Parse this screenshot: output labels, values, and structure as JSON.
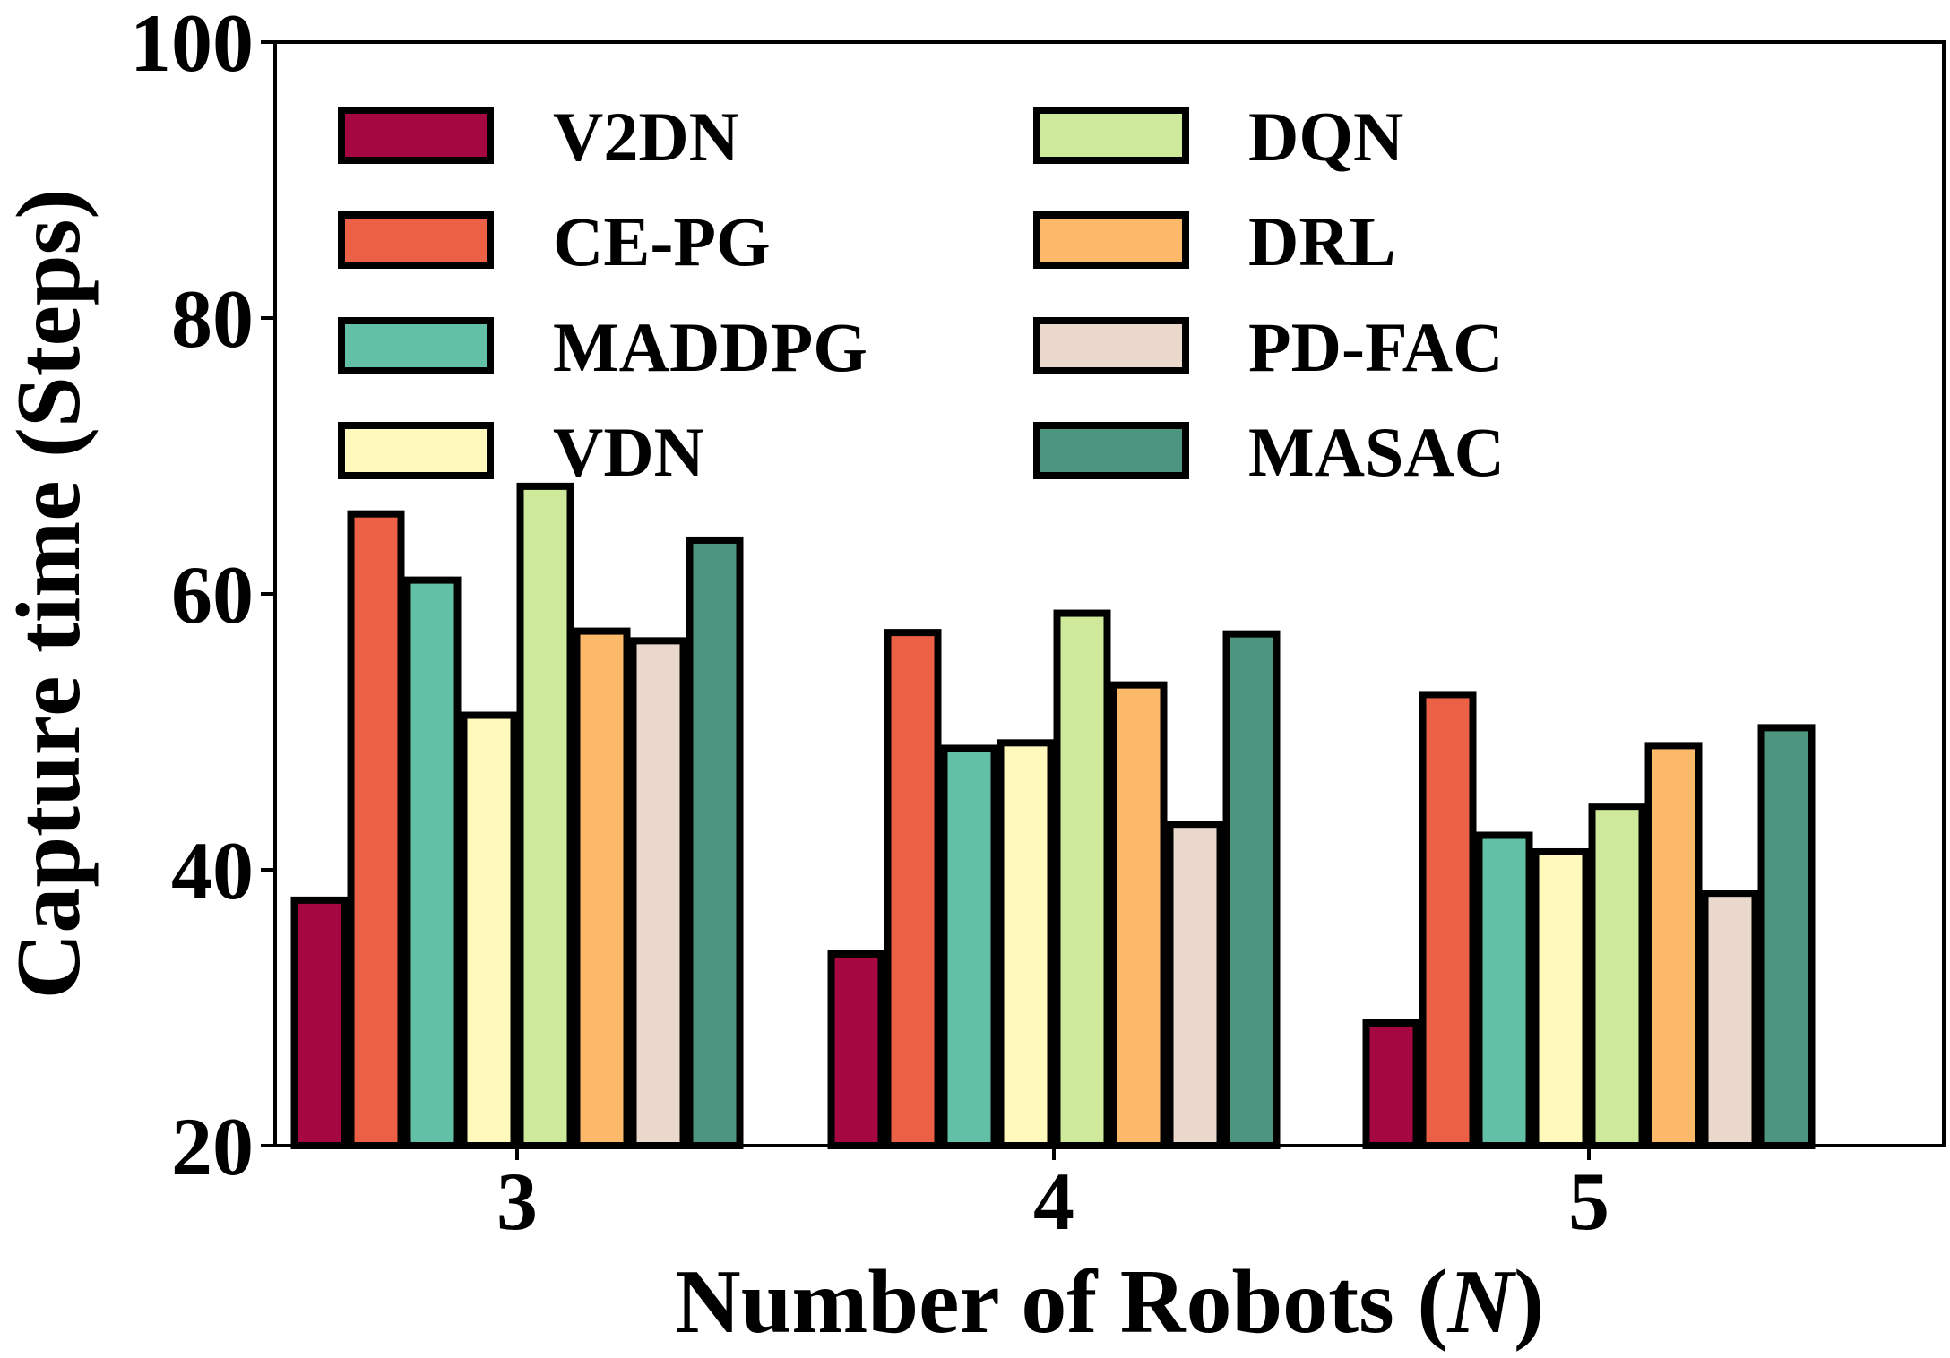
{
  "chart_data": {
    "type": "bar",
    "title": "",
    "xlabel": "Number of Robots (N)",
    "xlabel_parts": {
      "prefix": "Number of Robots (",
      "var": "N",
      "suffix": ")"
    },
    "ylabel": "Capture time (Steps)",
    "ylim": [
      20,
      100
    ],
    "yticks": [
      "20",
      "40",
      "60",
      "80",
      "100"
    ],
    "categories": [
      "3",
      "4",
      "5"
    ],
    "grid": false,
    "legend_position": "top-left",
    "legend_columns": 2,
    "series": [
      {
        "name": "V2DN",
        "color": "#a50841",
        "values": [
          37.8,
          33.9,
          28.9
        ]
      },
      {
        "name": "CE-PG",
        "color": "#ec6046",
        "values": [
          65.8,
          57.2,
          52.7
        ]
      },
      {
        "name": "MADDPG",
        "color": "#62c0a7",
        "values": [
          61.0,
          48.8,
          42.5
        ]
      },
      {
        "name": "VDN",
        "color": "#fffabb",
        "values": [
          51.2,
          49.2,
          41.3
        ]
      },
      {
        "name": "DQN",
        "color": "#cfe99a",
        "values": [
          67.8,
          58.6,
          44.6
        ]
      },
      {
        "name": "DRL",
        "color": "#fbb969",
        "values": [
          57.3,
          53.4,
          49.0
        ]
      },
      {
        "name": "PD-FAC",
        "color": "#ebd8cd",
        "values": [
          56.6,
          43.3,
          38.3
        ]
      },
      {
        "name": "MASAC",
        "color": "#4e9580",
        "values": [
          63.9,
          57.1,
          50.3
        ]
      }
    ]
  }
}
